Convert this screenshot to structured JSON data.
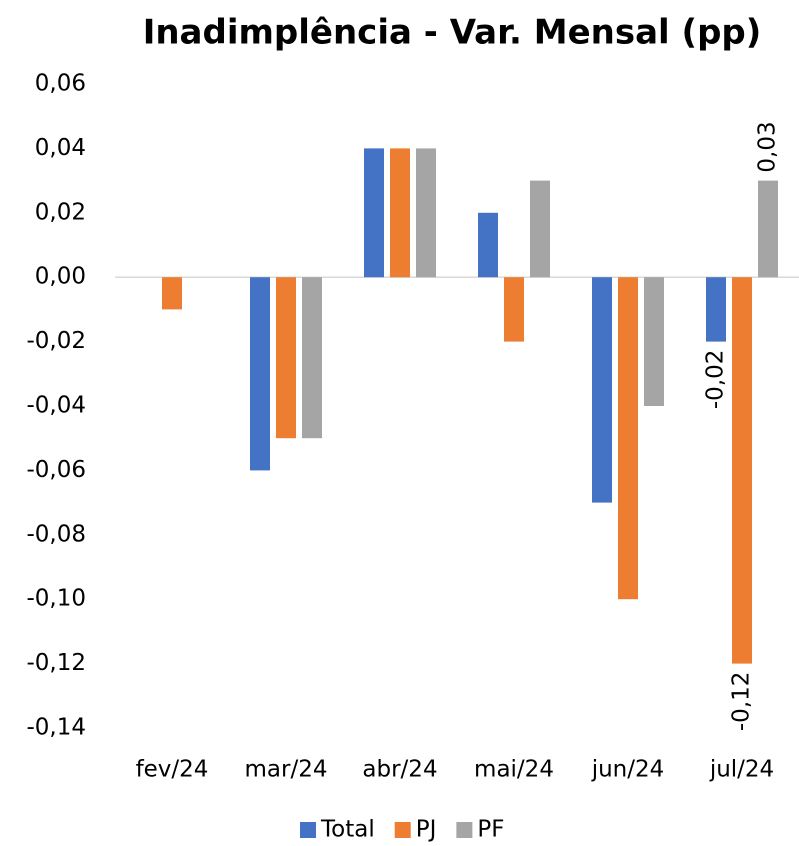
{
  "chart_data": {
    "type": "bar",
    "title": "Inadimplência - Var. Mensal (pp)",
    "categories": [
      "fev/24",
      "mar/24",
      "abr/24",
      "mai/24",
      "jun/24",
      "jul/24"
    ],
    "series": [
      {
        "name": "Total",
        "color": "#4472c4",
        "values": [
          0,
          -0.06,
          0.04,
          0.02,
          -0.07,
          -0.02
        ],
        "value_labels": [
          null,
          null,
          null,
          null,
          null,
          "-0,02"
        ]
      },
      {
        "name": "PJ",
        "color": "#ed7d31",
        "values": [
          -0.01,
          -0.05,
          0.04,
          -0.02,
          -0.1,
          -0.12
        ],
        "value_labels": [
          null,
          null,
          null,
          null,
          null,
          "-0,12"
        ]
      },
      {
        "name": "PF",
        "color": "#a5a5a5",
        "values": [
          0,
          -0.05,
          0.04,
          0.03,
          -0.04,
          0.03
        ],
        "value_labels": [
          null,
          null,
          null,
          null,
          null,
          "0,03"
        ]
      }
    ],
    "ylim": [
      -0.14,
      0.06
    ],
    "yticks": [
      {
        "value": 0.06,
        "label": "0,06"
      },
      {
        "value": 0.04,
        "label": "0,04"
      },
      {
        "value": 0.02,
        "label": "0,02"
      },
      {
        "value": 0,
        "label": "0,00"
      },
      {
        "value": -0.02,
        "label": "-0,02"
      },
      {
        "value": -0.04,
        "label": "-0,04"
      },
      {
        "value": -0.06,
        "label": "-0,06"
      },
      {
        "value": -0.08,
        "label": "-0,08"
      },
      {
        "value": -0.1,
        "label": "-0,10"
      },
      {
        "value": -0.12,
        "label": "-0,12"
      },
      {
        "value": -0.14,
        "label": "-0,14"
      }
    ],
    "grid": false,
    "legend": "bottom"
  }
}
